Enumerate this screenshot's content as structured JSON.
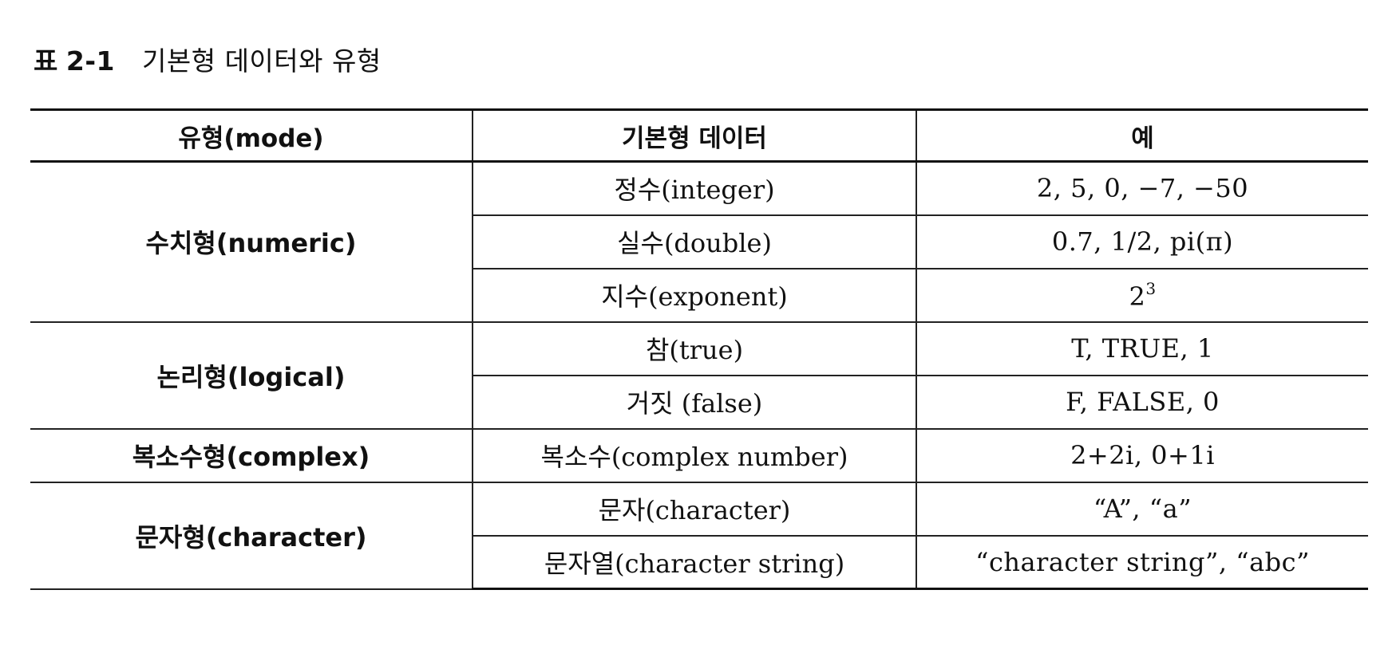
{
  "caption": {
    "label": "표",
    "number": "2-1",
    "title": "기본형 데이터와 유형"
  },
  "table": {
    "headers": [
      "유형(mode)",
      "기본형 데이터",
      "예"
    ],
    "groups": [
      {
        "mode": "수치형(numeric)",
        "rows": [
          {
            "data": "정수(integer)",
            "example": "2, 5, 0, −7, −50"
          },
          {
            "data": "실수(double)",
            "example": "0.7, 1/2, pi(π)"
          },
          {
            "data": "지수(exponent)",
            "example_base": "2",
            "example_exp": "3"
          }
        ]
      },
      {
        "mode": "논리형(logical)",
        "rows": [
          {
            "data": "참(true)",
            "example": "T, TRUE, 1"
          },
          {
            "data": "거짓 (false)",
            "example": "F, FALSE, 0"
          }
        ]
      },
      {
        "mode": "복소수형(complex)",
        "rows": [
          {
            "data": "복소수(complex number)",
            "example": "2+2i, 0+1i"
          }
        ]
      },
      {
        "mode": "문자형(character)",
        "rows": [
          {
            "data": "문자(character)",
            "example": "“A”, “a”"
          },
          {
            "data": "문자열(character string)",
            "example": "“character string”, “abc”"
          }
        ]
      }
    ]
  }
}
